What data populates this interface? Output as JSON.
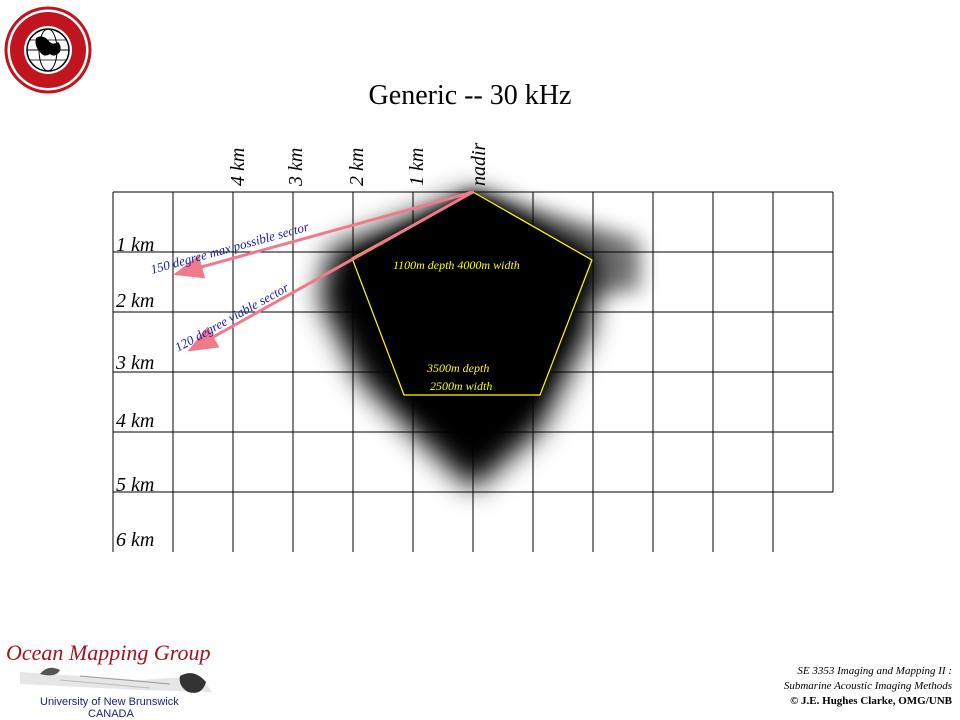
{
  "title": "Generic -- 30 kHz",
  "logo": {
    "name": "GEODESY AND GEOMATICS ENGINEERING",
    "short": "UNB"
  },
  "x_labels": [
    "4 km",
    "3 km",
    "2 km",
    "1 km",
    "nadir"
  ],
  "y_labels": [
    "1 km",
    "2 km",
    "3 km",
    "4 km",
    "5 km",
    "6 km"
  ],
  "annotations": {
    "sector_150": "150 degree max possible sector",
    "sector_120": "120 degree viable sector",
    "swath_top": "1100m depth 4000m width",
    "swath_bottom_1": "3500m depth",
    "swath_bottom_2": "2500m width"
  },
  "colors": {
    "arrow": "#f07a8a",
    "swath_outline": "#ffff00",
    "sector_text": "#1a1aa6",
    "brand_red": "#a0141e"
  },
  "branding": {
    "group": "Ocean Mapping Group",
    "university": "University of New Brunswick",
    "country": "CANADA"
  },
  "footer": {
    "line1": "SE 3353 Imaging and Mapping II :",
    "line2": "Submarine Acoustic Imaging Methods",
    "line3": "© J.E. Hughes Clarke, OMG/UNB"
  }
}
